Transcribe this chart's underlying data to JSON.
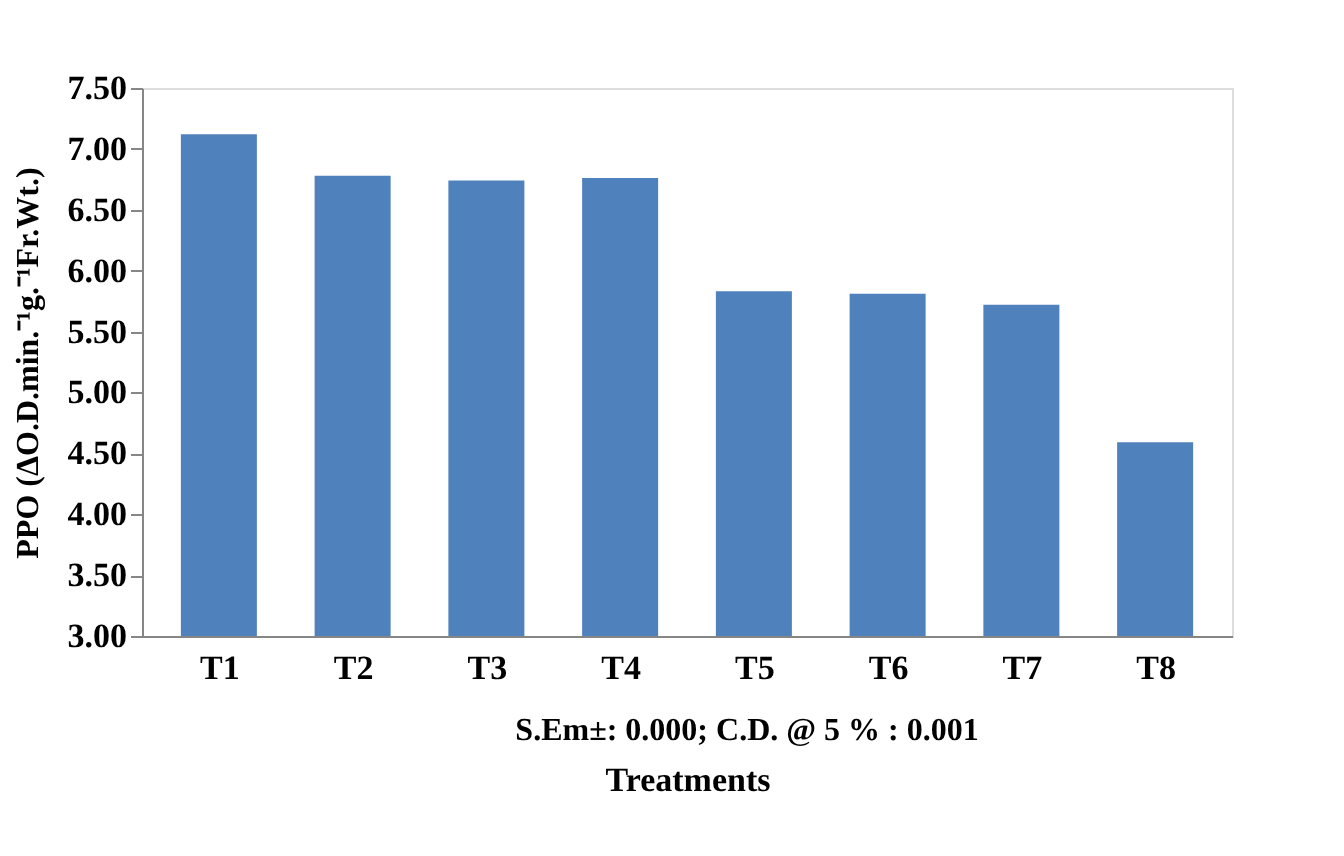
{
  "chart_data": {
    "type": "bar",
    "ylabel": "PPO (ΔO.D.min.⁻¹g.⁻¹Fr.Wt.)",
    "xlabel": "Treatments",
    "categories": [
      "T1",
      "T2",
      "T3",
      "T4",
      "T5",
      "T6",
      "T7",
      "T8"
    ],
    "values": [
      7.12,
      6.78,
      6.74,
      6.76,
      5.83,
      5.81,
      5.72,
      4.59
    ],
    "color": "#4f81bd",
    "ylim": [
      3.0,
      7.5
    ],
    "yticks": [
      {
        "value": 3.0,
        "label": "3.00"
      },
      {
        "value": 3.5,
        "label": "3.50"
      },
      {
        "value": 4.0,
        "label": "4.00"
      },
      {
        "value": 4.5,
        "label": "4.50"
      },
      {
        "value": 5.0,
        "label": "5.00"
      },
      {
        "value": 5.5,
        "label": "5.50"
      },
      {
        "value": 6.0,
        "label": "6.00"
      },
      {
        "value": 6.5,
        "label": "6.50"
      },
      {
        "value": 7.0,
        "label": "7.00"
      },
      {
        "value": 7.5,
        "label": "7.50"
      }
    ],
    "annotations": [
      "S.Em±: 0.000;  C.D. @ 5 % : 0.001"
    ],
    "grid": false
  }
}
